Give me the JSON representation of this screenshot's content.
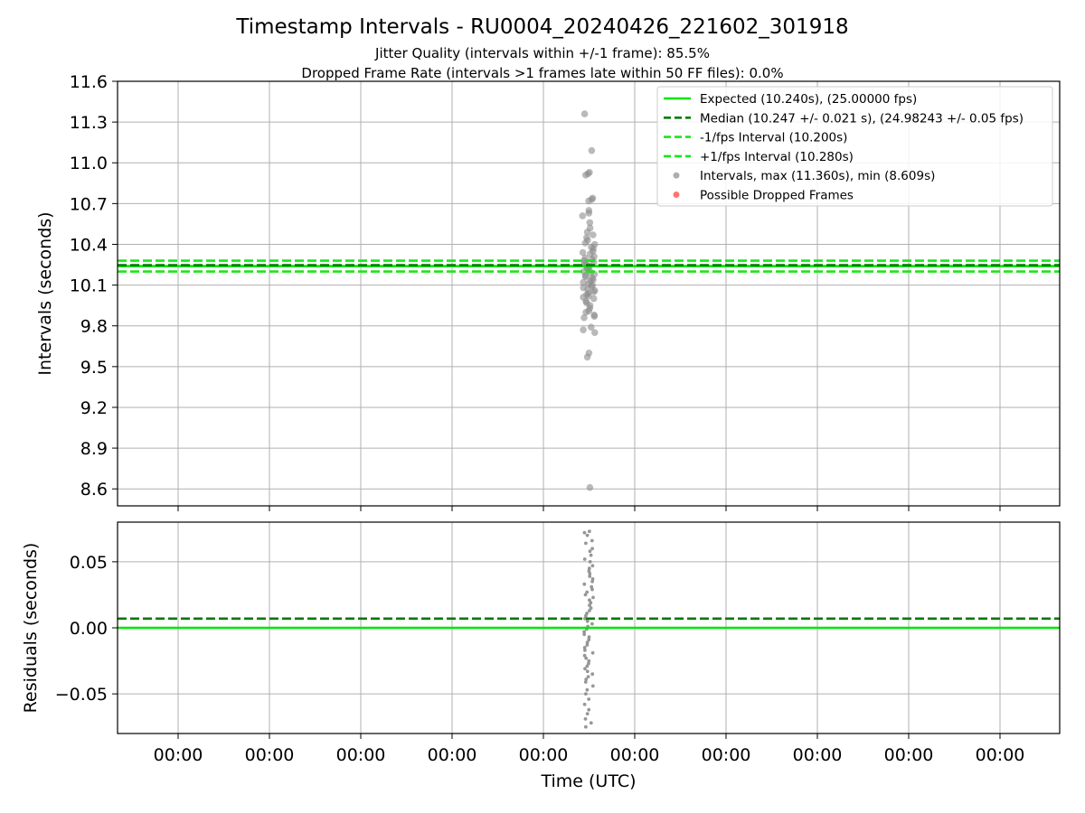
{
  "chart_data": {
    "type": "scatter",
    "title": "Timestamp Intervals - RU0004_20240426_221602_301918",
    "subtitle_1": "Jitter Quality (intervals within +/-1 frame): 85.5%",
    "subtitle_2": "Dropped Frame Rate (intervals >1 frames late within 50 FF files): 0.0%",
    "xlabel": "Time (UTC)",
    "x_tick_labels": [
      "00:00",
      "00:00",
      "00:00",
      "00:00",
      "00:00",
      "00:00",
      "00:00",
      "00:00",
      "00:00",
      "00:00"
    ],
    "colors": {
      "expected": "#00e600",
      "median": "#007a00",
      "interval_limits": "#19e619",
      "points": "#8c8c8c",
      "dropped": "#ff3b3b",
      "grid": "#b0b0b0"
    },
    "panels": [
      {
        "name": "intervals",
        "ylabel": "Intervals (seconds)",
        "ylim": [
          8.475,
          11.6
        ],
        "yticks": [
          8.6,
          8.9,
          9.2,
          9.5,
          9.8,
          10.1,
          10.4,
          10.7,
          11.0,
          11.3,
          11.6
        ],
        "ytick_labels": [
          "8.6",
          "8.9",
          "9.2",
          "9.5",
          "9.8",
          "10.1",
          "10.4",
          "10.7",
          "11.0",
          "11.3",
          "11.6"
        ],
        "grid": true,
        "reference_lines": [
          {
            "name": "Expected",
            "y": 10.24,
            "style": "solid",
            "color_key": "expected"
          },
          {
            "name": "Median",
            "y": 10.247,
            "style": "dashed",
            "color_key": "median"
          },
          {
            "name": "-1/fps Interval",
            "y": 10.2,
            "style": "dashed",
            "color_key": "interval_limits"
          },
          {
            "name": "+1/fps Interval",
            "y": 10.28,
            "style": "dashed",
            "color_key": "interval_limits"
          }
        ],
        "series": [
          {
            "name": "Intervals",
            "color_key": "points",
            "values": [
              11.36,
              11.09,
              10.93,
              10.92,
              10.91,
              10.74,
              10.73,
              10.72,
              10.65,
              10.63,
              10.61,
              10.56,
              10.52,
              10.49,
              10.47,
              10.45,
              10.43,
              10.41,
              10.4,
              10.38,
              10.37,
              10.35,
              10.34,
              10.33,
              10.31,
              10.3,
              10.29,
              10.28,
              10.27,
              10.26,
              10.25,
              10.24,
              10.23,
              10.22,
              10.21,
              10.2,
              10.19,
              10.18,
              10.17,
              10.16,
              10.15,
              10.14,
              10.13,
              10.12,
              10.11,
              10.1,
              10.09,
              10.08,
              10.07,
              10.06,
              10.05,
              10.04,
              10.03,
              10.02,
              10.01,
              10.0,
              9.98,
              9.97,
              9.95,
              9.93,
              9.91,
              9.9,
              9.88,
              9.87,
              9.86,
              9.79,
              9.77,
              9.75,
              9.6,
              9.57,
              8.61
            ]
          }
        ],
        "legend": {
          "placement": "upper right",
          "entries": [
            {
              "label": "Expected (10.240s), (25.00000 fps)",
              "marker": "solid",
              "color_key": "expected"
            },
            {
              "label": "Median (10.247 +/- 0.021 s), (24.98243 +/- 0.05 fps)",
              "marker": "dashed",
              "color_key": "median"
            },
            {
              "label": "-1/fps Interval (10.200s)",
              "marker": "dashed",
              "color_key": "interval_limits"
            },
            {
              "label": "+1/fps Interval (10.280s)",
              "marker": "dashed",
              "color_key": "interval_limits"
            },
            {
              "label": "Intervals, max (11.360s), min (8.609s)",
              "marker": "dot",
              "color_key": "points"
            },
            {
              "label": "Possible Dropped Frames",
              "marker": "dot",
              "color_key": "dropped"
            }
          ]
        }
      },
      {
        "name": "residuals",
        "ylabel": "Residuals (seconds)",
        "ylim": [
          -0.08,
          0.08
        ],
        "yticks": [
          -0.05,
          0.0,
          0.05
        ],
        "ytick_labels": [
          "−0.05",
          "0.00",
          "0.05"
        ],
        "grid": true,
        "reference_lines": [
          {
            "name": "Expected",
            "y": 0.0,
            "style": "solid",
            "color_key": "expected"
          },
          {
            "name": "Median",
            "y": 0.007,
            "style": "dashed",
            "color_key": "median"
          }
        ],
        "series": [
          {
            "name": "Residuals",
            "color_key": "points",
            "values": [
              0.073,
              0.072,
              0.07,
              0.066,
              0.064,
              0.06,
              0.058,
              0.055,
              0.052,
              0.05,
              0.047,
              0.045,
              0.043,
              0.041,
              0.039,
              0.037,
              0.035,
              0.033,
              0.031,
              0.029,
              0.027,
              0.025,
              0.023,
              0.021,
              0.019,
              0.017,
              0.015,
              0.013,
              0.011,
              0.009,
              0.007,
              0.005,
              0.003,
              0.001,
              -0.001,
              -0.003,
              -0.005,
              -0.007,
              -0.009,
              -0.011,
              -0.013,
              -0.015,
              -0.017,
              -0.019,
              -0.021,
              -0.023,
              -0.025,
              -0.027,
              -0.029,
              -0.031,
              -0.033,
              -0.035,
              -0.037,
              -0.039,
              -0.041,
              -0.044,
              -0.047,
              -0.05,
              -0.054,
              -0.058,
              -0.062,
              -0.065,
              -0.069,
              -0.072,
              -0.075
            ]
          }
        ]
      }
    ]
  }
}
